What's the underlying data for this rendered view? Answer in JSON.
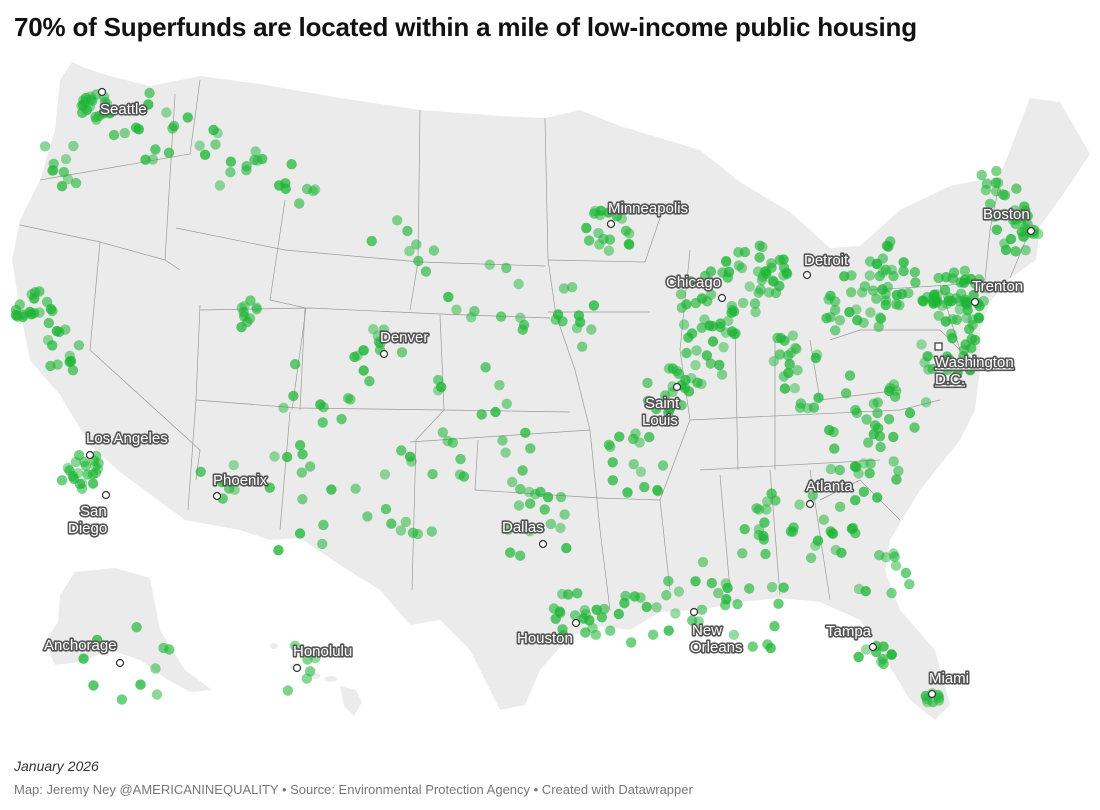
{
  "header": {
    "title": "70% of Superfunds are located within a mile of low-income public housing"
  },
  "colors": {
    "land": "#ebebeb",
    "border": "#9a9a9a",
    "dot": "#1db535",
    "dot_dense": "#009c1f",
    "city_marker_fill": "#ffffff",
    "city_marker_stroke": "#333333",
    "label_fill": "#ffffff",
    "label_stroke": "#555555"
  },
  "cities": [
    {
      "name": "Seattle"
    },
    {
      "name": "Minneapolis"
    },
    {
      "name": "Boston"
    },
    {
      "name": "Detroit"
    },
    {
      "name": "Chicago"
    },
    {
      "name": "Trenton"
    },
    {
      "name": "Denver"
    },
    {
      "name": "Washington D.C."
    },
    {
      "name": "Saint Louis"
    },
    {
      "name": "Los Angeles"
    },
    {
      "name": "Phoenix"
    },
    {
      "name": "Atlanta"
    },
    {
      "name": "San Diego"
    },
    {
      "name": "Dallas"
    },
    {
      "name": "New Orleans"
    },
    {
      "name": "Houston"
    },
    {
      "name": "Tampa"
    },
    {
      "name": "Anchorage"
    },
    {
      "name": "Honolulu"
    },
    {
      "name": "Miami"
    }
  ],
  "footer": {
    "date": "January 2026",
    "credit": "Map: Jeremy Ney @AMERICANINEQUALITY • Source: Environmental Protection Agency • Created with Datawrapper"
  }
}
